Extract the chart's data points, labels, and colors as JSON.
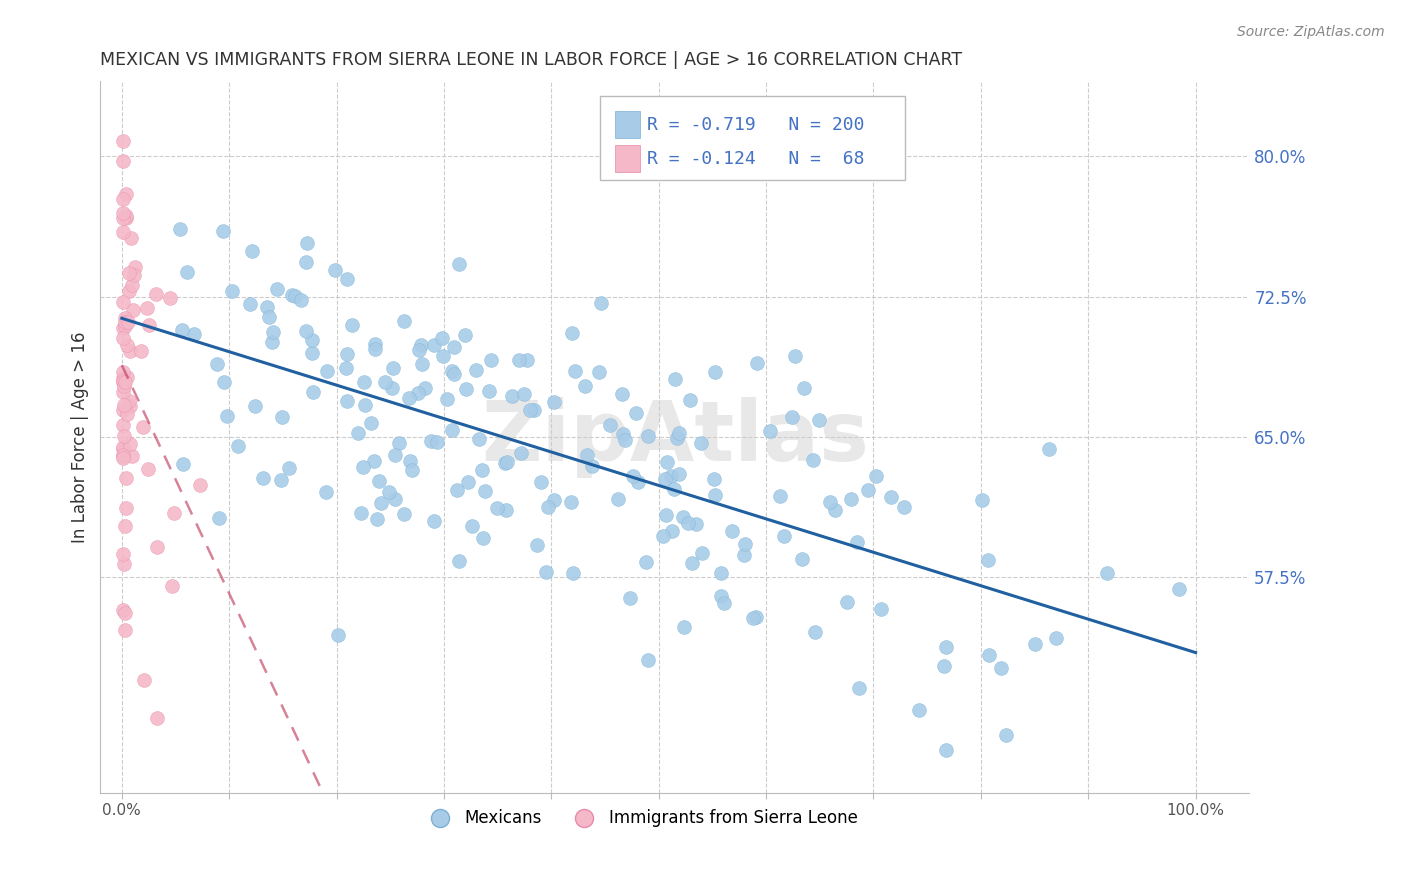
{
  "title": "MEXICAN VS IMMIGRANTS FROM SIERRA LEONE IN LABOR FORCE | AGE > 16 CORRELATION CHART",
  "source": "Source: ZipAtlas.com",
  "ylabel": "In Labor Force | Age > 16",
  "xlim": [
    -0.02,
    1.05
  ],
  "ylim": [
    0.46,
    0.84
  ],
  "blue_color": "#a8cce8",
  "blue_color_edge": "#7ab0d4",
  "pink_color": "#f4b8c8",
  "pink_color_edge": "#e88aaa",
  "blue_line_color": "#2060a0",
  "pink_line_color": "#c04060",
  "watermark": "ZipAtlas",
  "blue_R": -0.719,
  "blue_N": 200,
  "pink_R": -0.124,
  "pink_N": 68,
  "blue_seed": 42,
  "pink_seed": 7,
  "background_color": "#ffffff",
  "grid_color": "#cccccc",
  "title_color": "#333333",
  "axis_color": "#4472c4",
  "right_tick_color": "#4472c4",
  "ytick_positions": [
    0.575,
    0.65,
    0.725,
    0.8
  ],
  "ytick_labels": [
    "57.5%",
    "65.0%",
    "72.5%",
    "80.0%"
  ]
}
